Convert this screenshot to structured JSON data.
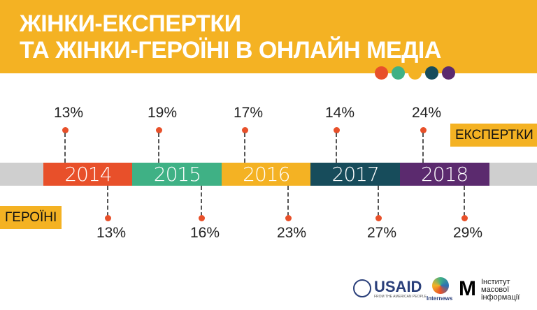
{
  "title_line1": "ЖІНКИ-ЕКСПЕРТКИ",
  "title_line2": "ТА ЖІНКИ-ГЕРОЇНІ В ОНЛАЙН МЕДІА",
  "label_experts": "ЕКСПЕРТКИ",
  "label_heroines": "ГЕРОЇНІ",
  "colors": {
    "header": "#f4b223",
    "dots": [
      "#e8502a",
      "#3fb185",
      "#f4b223",
      "#174c5b",
      "#5b2a6e"
    ]
  },
  "years": [
    {
      "year": "2014",
      "color": "#e8502a",
      "experts": "13%",
      "heroines": "13%"
    },
    {
      "year": "2015",
      "color": "#3fb185",
      "experts": "19%",
      "heroines": "16%"
    },
    {
      "year": "2016",
      "color": "#f4b223",
      "experts": "17%",
      "heroines": "23%"
    },
    {
      "year": "2017",
      "color": "#174c5b",
      "experts": "14%",
      "heroines": "27%"
    },
    {
      "year": "2018",
      "color": "#5b2a6e",
      "experts": "24%",
      "heroines": "29%"
    }
  ],
  "logos": {
    "usaid": "USAID",
    "usaid_sub": "FROM THE AMERICAN PEOPLE",
    "internews": "Internews",
    "imi": "Інститут масової інформації"
  }
}
